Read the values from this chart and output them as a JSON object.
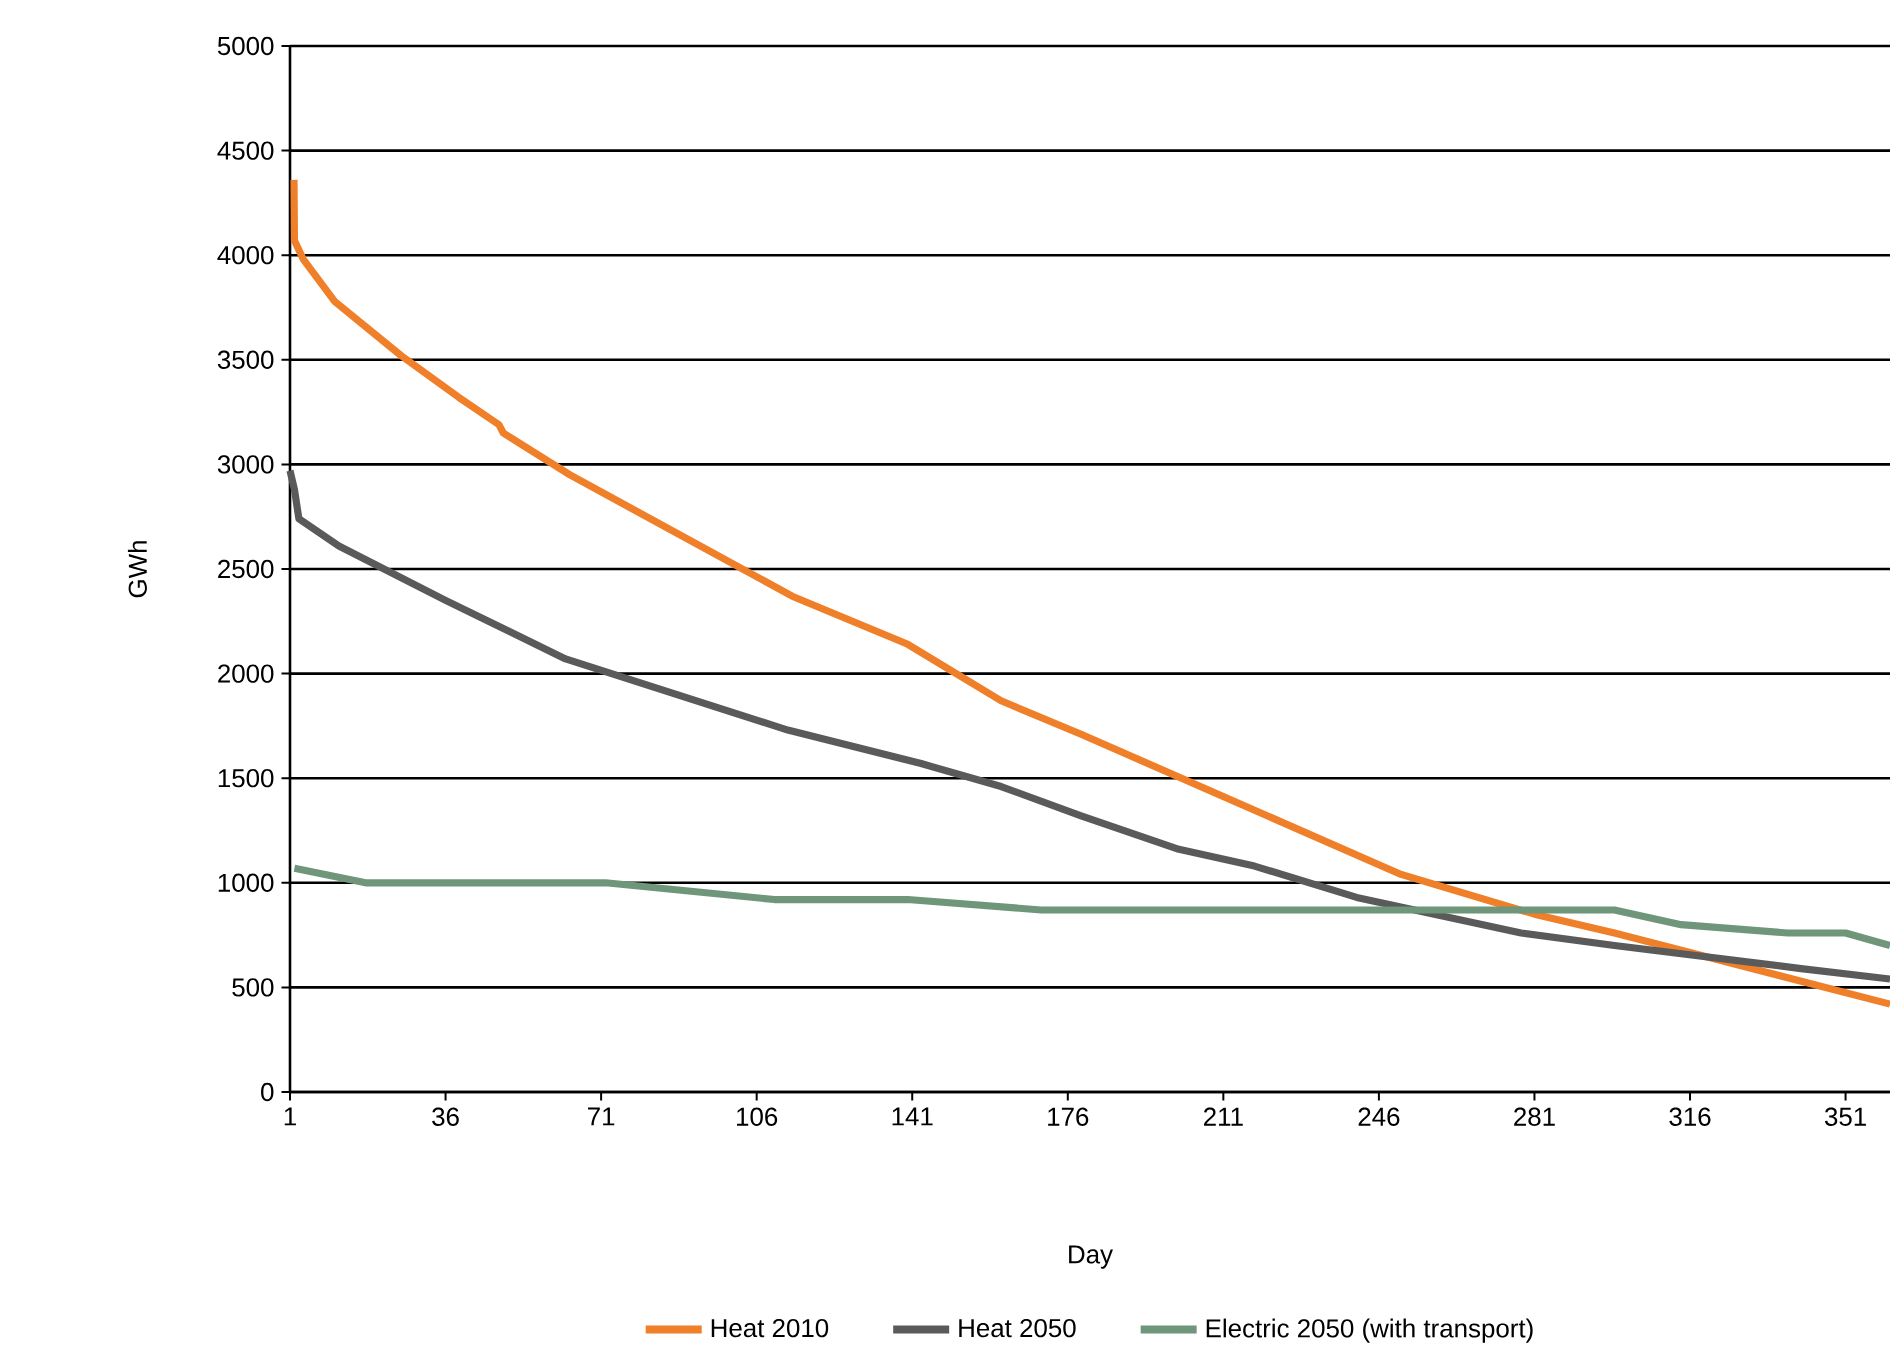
{
  "chart_data": {
    "type": "line",
    "xlabel": "Day",
    "ylabel": "GWh",
    "xlim": [
      1,
      361
    ],
    "ylim": [
      0,
      5000
    ],
    "xticks": [
      1,
      36,
      71,
      106,
      141,
      176,
      211,
      246,
      281,
      316,
      351
    ],
    "yticks": [
      0,
      500,
      1000,
      1500,
      2000,
      2500,
      3000,
      3500,
      4000,
      4500,
      5000
    ],
    "grid": "y",
    "legend": "bottom",
    "series": [
      {
        "name": "Heat 2010",
        "color": "#f07f2a",
        "x": [
          1.9,
          2,
          4,
          11,
          26,
          39,
          48,
          49,
          64,
          114,
          140,
          161,
          179,
          251,
          281,
          299,
          361
        ],
        "values": [
          4360,
          4070,
          3980,
          3780,
          3520,
          3320,
          3190,
          3150,
          2950,
          2370,
          2140,
          1870,
          1710,
          1040,
          850,
          760,
          420
        ]
      },
      {
        "name": "Heat 2050",
        "color": "#5a5a5a",
        "x": [
          1,
          2,
          3,
          12,
          36,
          63,
          113,
          143,
          161,
          179,
          201,
          218,
          241,
          278,
          299,
          341,
          361
        ],
        "values": [
          2970,
          2880,
          2740,
          2610,
          2350,
          2070,
          1730,
          1570,
          1460,
          1320,
          1160,
          1080,
          930,
          760,
          700,
          590,
          540
        ]
      },
      {
        "name": "Electric 2050 (with transport)",
        "color": "#6f967a",
        "x": [
          2,
          18,
          72,
          110,
          140,
          170,
          299,
          314,
          338,
          351,
          361
        ],
        "values": [
          1070,
          1000,
          1000,
          920,
          920,
          870,
          870,
          800,
          760,
          760,
          700
        ]
      }
    ]
  }
}
